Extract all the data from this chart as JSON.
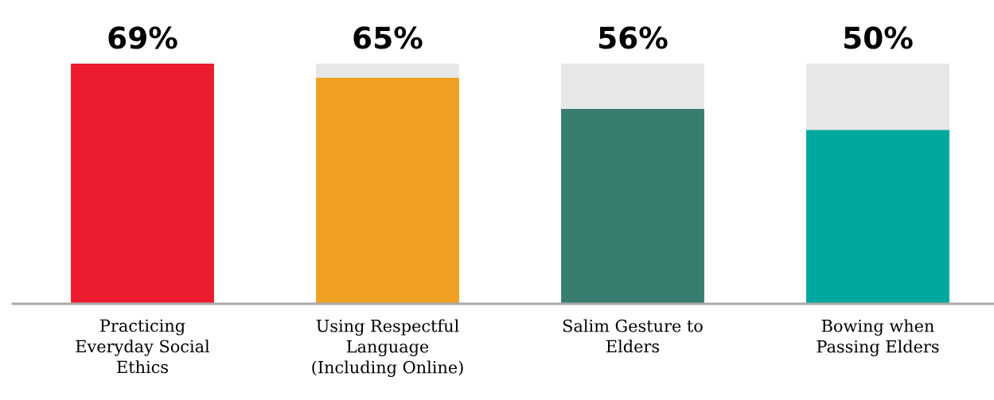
{
  "chart_data": {
    "type": "bar",
    "stacked": true,
    "categories": [
      "Practicing\nEveryday Social\nEthics",
      "Using Respectful\nLanguage\n(Including Online)",
      "Salim Gesture to\nElders",
      "Bowing when\nPassing Elders"
    ],
    "series": [
      {
        "colors": [
          "#ec1c2e",
          "#efa021",
          "#397d70",
          "#00a8a0"
        ],
        "values": [
          69,
          65,
          56,
          50
        ],
        "value_labels": [
          "69%",
          "65%",
          "56%",
          "50%"
        ]
      },
      {
        "color": "#e6e7e8",
        "values": [
          0,
          4,
          13,
          19
        ]
      }
    ],
    "grid": false,
    "legend": false
  }
}
